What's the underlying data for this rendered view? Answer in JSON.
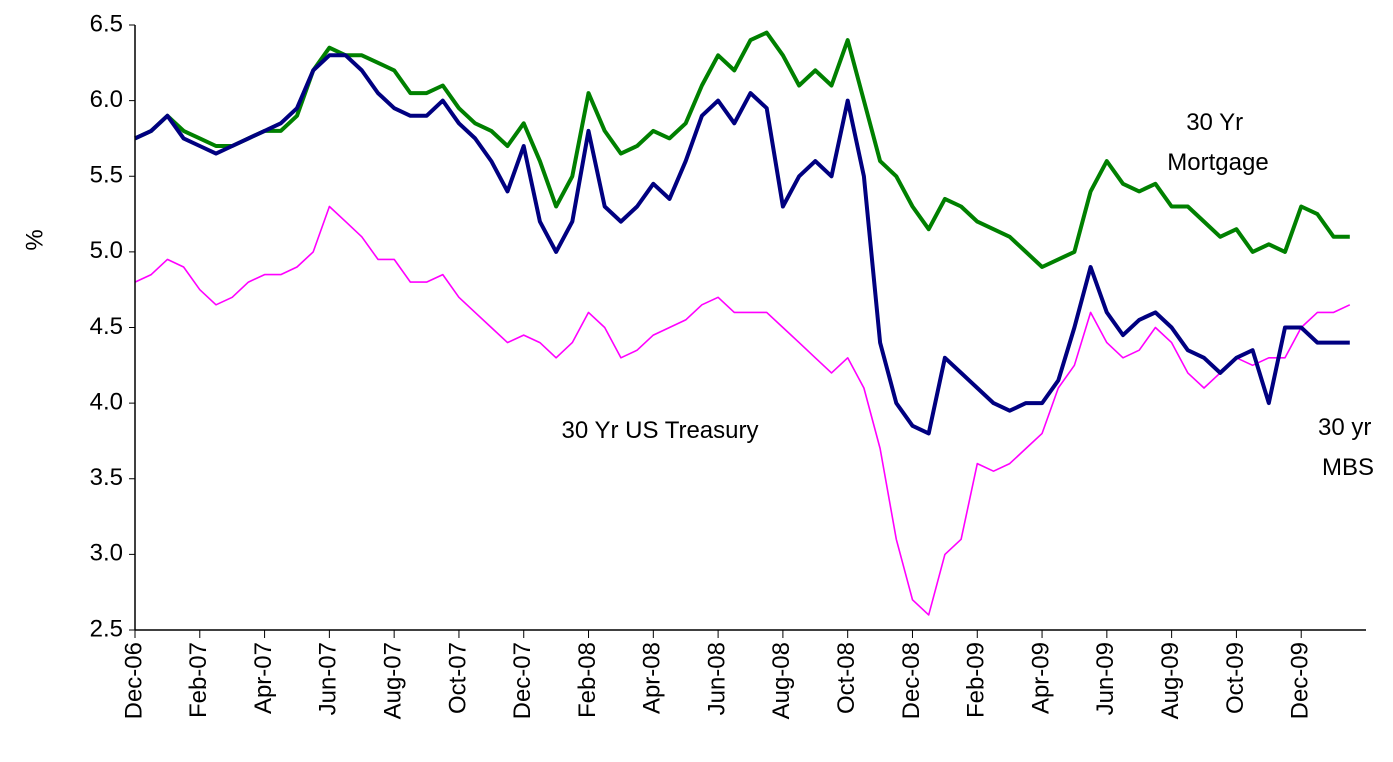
{
  "chart_data": {
    "type": "line",
    "ylabel": "%",
    "categories": [
      "Dec-06",
      null,
      null,
      null,
      "Feb-07",
      null,
      null,
      null,
      "Apr-07",
      null,
      null,
      null,
      "Jun-07",
      null,
      null,
      null,
      "Aug-07",
      null,
      null,
      null,
      "Oct-07",
      null,
      null,
      null,
      "Dec-07",
      null,
      null,
      null,
      "Feb-08",
      null,
      null,
      null,
      "Apr-08",
      null,
      null,
      null,
      "Jun-08",
      null,
      null,
      null,
      "Aug-08",
      null,
      null,
      null,
      "Oct-08",
      null,
      null,
      null,
      "Dec-08",
      null,
      null,
      null,
      "Feb-09",
      null,
      null,
      null,
      "Apr-09",
      null,
      null,
      null,
      "Jun-09",
      null,
      null,
      null,
      "Aug-09",
      null,
      null,
      null,
      "Oct-09",
      null,
      null,
      null,
      "Dec-09",
      null,
      null,
      null
    ],
    "series": [
      {
        "name": "30 Yr Mortgage",
        "color": "#008000",
        "width": 4,
        "values": [
          5.75,
          5.8,
          5.9,
          5.8,
          5.75,
          5.7,
          5.7,
          5.75,
          5.8,
          5.8,
          5.9,
          6.2,
          6.35,
          6.3,
          6.3,
          6.25,
          6.2,
          6.05,
          6.05,
          6.1,
          5.95,
          5.85,
          5.8,
          5.7,
          5.85,
          5.6,
          5.3,
          5.5,
          6.05,
          5.8,
          5.65,
          5.7,
          5.8,
          5.75,
          5.85,
          6.1,
          6.3,
          6.2,
          6.4,
          6.45,
          6.3,
          6.1,
          6.2,
          6.1,
          6.4,
          6.0,
          5.6,
          5.5,
          5.3,
          5.15,
          5.35,
          5.3,
          5.2,
          5.15,
          5.1,
          5.0,
          4.9,
          4.95,
          5.0,
          5.4,
          5.6,
          5.45,
          5.4,
          5.45,
          5.3,
          5.3,
          5.2,
          5.1,
          5.15,
          5.0,
          5.05,
          5.0,
          5.3,
          5.25,
          5.1,
          5.1
        ]
      },
      {
        "name": "30 yr MBS",
        "color": "#000080",
        "width": 4,
        "values": [
          5.75,
          5.8,
          5.9,
          5.75,
          5.7,
          5.65,
          5.7,
          5.75,
          5.8,
          5.85,
          5.95,
          6.2,
          6.3,
          6.3,
          6.2,
          6.05,
          5.95,
          5.9,
          5.9,
          6.0,
          5.85,
          5.75,
          5.6,
          5.4,
          5.7,
          5.2,
          5.0,
          5.2,
          5.8,
          5.3,
          5.2,
          5.3,
          5.45,
          5.35,
          5.6,
          5.9,
          6.0,
          5.85,
          6.05,
          5.95,
          5.3,
          5.5,
          5.6,
          5.5,
          6.0,
          5.5,
          4.4,
          4.0,
          3.85,
          3.8,
          4.3,
          4.2,
          4.1,
          4.0,
          3.95,
          4.0,
          4.0,
          4.15,
          4.5,
          4.9,
          4.6,
          4.45,
          4.55,
          4.6,
          4.5,
          4.35,
          4.3,
          4.2,
          4.3,
          4.35,
          4.0,
          4.5,
          4.5,
          4.4,
          4.4,
          4.4
        ]
      },
      {
        "name": "30 Yr US Treasury",
        "color": "#ff00ff",
        "width": 1.6,
        "values": [
          4.8,
          4.85,
          4.95,
          4.9,
          4.75,
          4.65,
          4.7,
          4.8,
          4.85,
          4.85,
          4.9,
          5.0,
          5.3,
          5.2,
          5.1,
          4.95,
          4.95,
          4.8,
          4.8,
          4.85,
          4.7,
          4.6,
          4.5,
          4.4,
          4.45,
          4.4,
          4.3,
          4.4,
          4.6,
          4.5,
          4.3,
          4.35,
          4.45,
          4.5,
          4.55,
          4.65,
          4.7,
          4.6,
          4.6,
          4.6,
          4.5,
          4.4,
          4.3,
          4.2,
          4.3,
          4.1,
          3.7,
          3.1,
          2.7,
          2.6,
          3.0,
          3.1,
          3.6,
          3.55,
          3.6,
          3.7,
          3.8,
          4.1,
          4.25,
          4.6,
          4.4,
          4.3,
          4.35,
          4.5,
          4.4,
          4.2,
          4.1,
          4.2,
          4.3,
          4.25,
          4.3,
          4.3,
          4.5,
          4.6,
          4.6,
          4.65
        ]
      }
    ],
    "annotations": [
      {
        "lines": [
          "30 Yr",
          "Mortgage"
        ]
      },
      {
        "lines": [
          "30 Yr US Treasury"
        ]
      },
      {
        "lines": [
          "30 yr",
          "MBS"
        ]
      }
    ],
    "ylim": [
      2.5,
      6.5
    ],
    "yticks": [
      2.5,
      {
        "value": 3,
        "label": "3.0"
      },
      3.5,
      {
        "value": 4,
        "label": "4.0"
      },
      4.5,
      {
        "value": 5,
        "label": "5.0"
      },
      5.5,
      {
        "value": 6,
        "label": "6.0"
      },
      6.5
    ],
    "grid": false
  }
}
